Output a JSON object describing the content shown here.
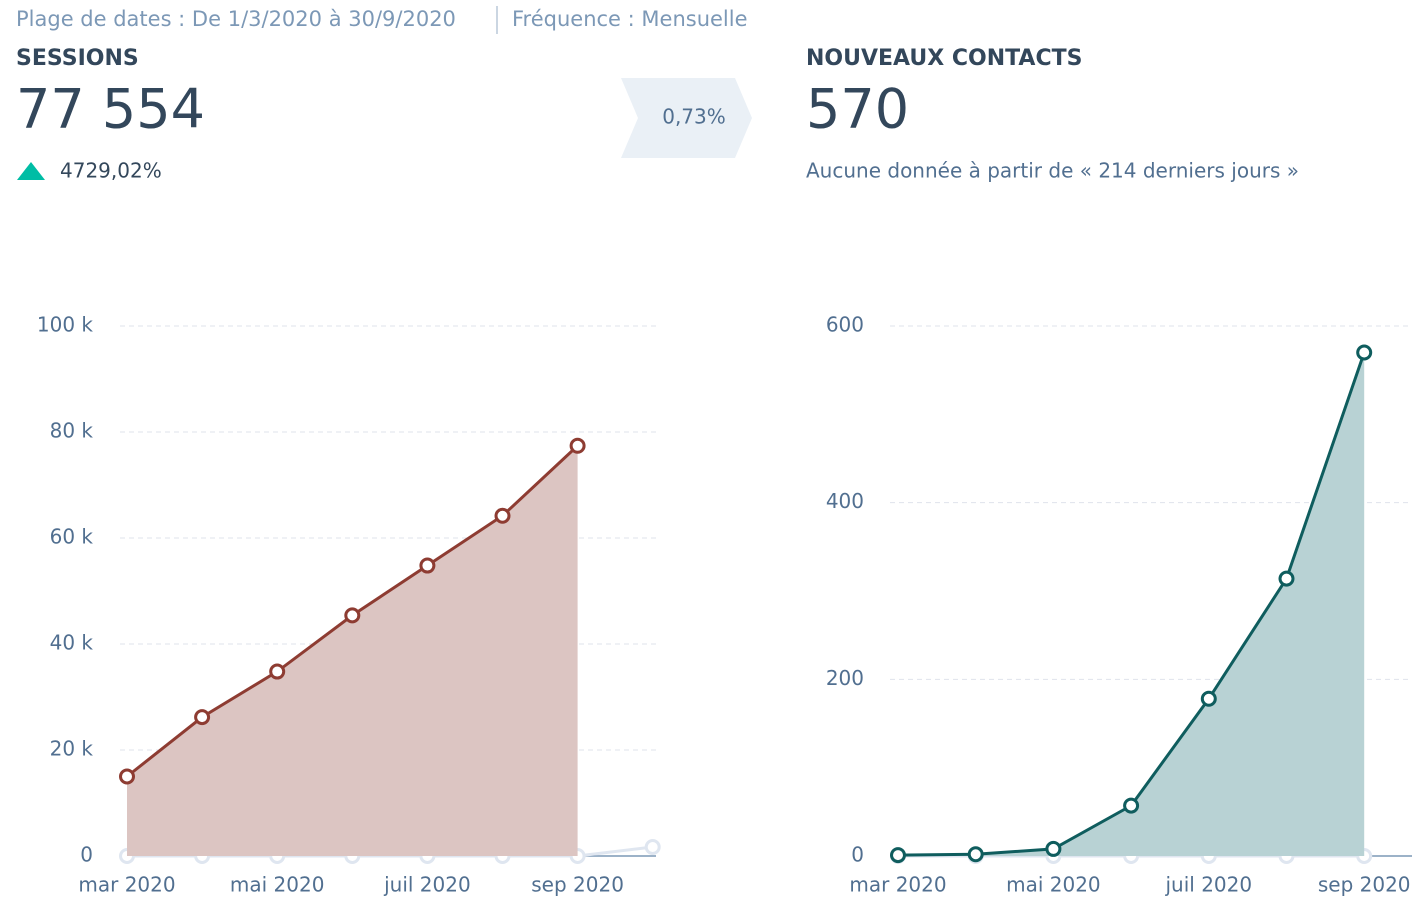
{
  "header": {
    "date_range": "Plage de dates : De 1/3/2020 à 30/9/2020",
    "frequency": "Fréquence : Mensuelle"
  },
  "comparison": "0,73%",
  "left_kpi": {
    "label": "SESSIONS",
    "value": "77 554",
    "change": "4729,02%"
  },
  "right_kpi": {
    "label": "NOUVEAUX CONTACTS",
    "value": "570",
    "note": "Aucune donnée à partir de « 214 derniers jours »"
  },
  "chart_data": [
    {
      "type": "area",
      "categories": [
        "mar 2020",
        null,
        "mai 2020",
        null,
        "juil 2020",
        null,
        "sep 2020",
        null
      ],
      "series": [
        {
          "color": "#8e3c32",
          "fill": "#dcc5c2",
          "values": [
            15000,
            26200,
            34800,
            45400,
            54800,
            64200,
            77400,
            null
          ]
        },
        {
          "color": "#dfe6f0",
          "values": [
            0,
            0,
            0,
            0,
            0,
            0,
            0,
            1700
          ]
        }
      ],
      "ylim": [
        0,
        100000
      ],
      "yticks": [
        0,
        {
          "value": 20000,
          "label": "20 k"
        },
        {
          "value": 40000,
          "label": "40 k"
        },
        {
          "value": 60000,
          "label": "60 k"
        },
        {
          "value": 80000,
          "label": "80 k"
        },
        {
          "value": 100000,
          "label": "100 k"
        }
      ],
      "grid": true
    },
    {
      "type": "area",
      "categories": [
        "mar 2020",
        null,
        "mai 2020",
        null,
        "juil 2020",
        null,
        "sep 2020"
      ],
      "series": [
        {
          "color": "#0f5d5e",
          "fill": "#b8d2d4",
          "values": [
            1,
            2,
            8,
            57,
            178,
            314,
            570
          ]
        },
        {
          "color": "#dfe6f0",
          "values": [
            0,
            0,
            0,
            0,
            0,
            0,
            0
          ]
        }
      ],
      "ylim": [
        0,
        600
      ],
      "yticks": [
        0,
        200,
        400,
        600
      ],
      "grid": true
    }
  ]
}
